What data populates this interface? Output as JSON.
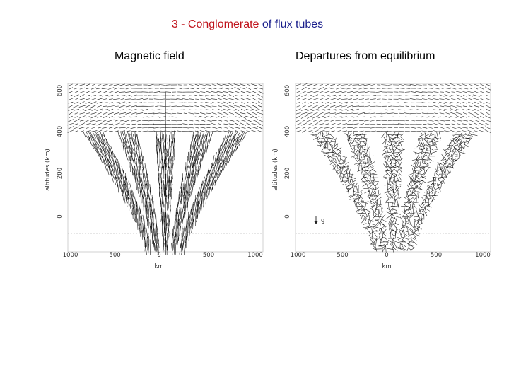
{
  "slide": {
    "title_part1": "3 - Conglomerate",
    "title_part2": "of flux tubes",
    "colors": {
      "title_red": "#c0141c",
      "title_blue": "#1a1f8c"
    }
  },
  "panels": [
    {
      "heading": "Magnetic field",
      "xlabel": "km",
      "ylabel": "altitudes (km)",
      "x_ticks": [
        "−1000",
        "−500",
        "0",
        "500",
        "1000"
      ],
      "y_ticks": [
        "600",
        "400",
        "200",
        "0"
      ],
      "annotation": ""
    },
    {
      "heading": "Departures from equilibrium",
      "xlabel": "km",
      "ylabel": "altitudes (km)",
      "x_ticks": [
        "−1000",
        "−500",
        "0",
        "500",
        "1000"
      ],
      "y_ticks": [
        "600",
        "400",
        "200",
        "0"
      ],
      "annotation": "g"
    }
  ],
  "chart_data": [
    {
      "type": "scatter",
      "plot": "vector field",
      "heading": "Magnetic field",
      "xlabel": "km",
      "ylabel": "altitudes (km)",
      "xlim": [
        -1000,
        1000
      ],
      "ylim": [
        -150,
        650
      ],
      "flux_tube_footpoints_x": [
        -175,
        -90,
        0,
        90,
        175
      ]
    },
    {
      "type": "scatter",
      "plot": "vector field",
      "heading": "Departures from equilibrium",
      "xlabel": "km",
      "ylabel": "altitudes (km)",
      "xlim": [
        -1000,
        1000
      ],
      "ylim": [
        -150,
        650
      ],
      "flux_tube_footpoints_x": [
        -175,
        -90,
        0,
        90,
        175
      ]
    }
  ]
}
